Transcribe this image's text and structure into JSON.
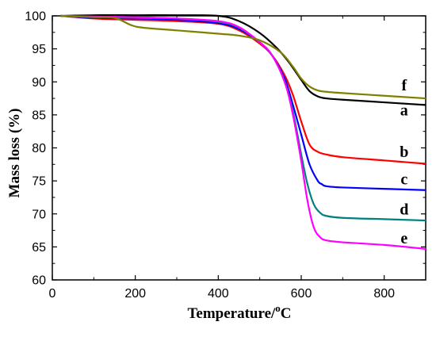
{
  "chart_data": {
    "type": "line",
    "xlabel": "Temperature/",
    "xlabel_unit_sup": "o",
    "xlabel_unit": "C",
    "ylabel": "Mass loss (%)",
    "xlim": [
      0,
      900
    ],
    "ylim": [
      60,
      100
    ],
    "x_ticks": [
      0,
      200,
      400,
      600,
      800
    ],
    "y_ticks": [
      60,
      65,
      70,
      75,
      80,
      85,
      90,
      95,
      100
    ],
    "grid": false,
    "series": [
      {
        "name": "a",
        "color": "#000000",
        "x": [
          20,
          100,
          200,
          300,
          400,
          450,
          500,
          540,
          570,
          600,
          620,
          640,
          660,
          700,
          800,
          900
        ],
        "y": [
          100,
          100.1,
          100.1,
          100.1,
          100,
          99.2,
          97.4,
          95.2,
          93,
          90.3,
          88.6,
          87.8,
          87.5,
          87.3,
          86.9,
          86.5
        ]
      },
      {
        "name": "b",
        "color": "#ff0000",
        "x": [
          20,
          100,
          200,
          300,
          400,
          450,
          500,
          530,
          560,
          580,
          600,
          620,
          640,
          660,
          700,
          800,
          900
        ],
        "y": [
          100,
          99.6,
          99.4,
          99.2,
          98.8,
          97.8,
          95.8,
          94,
          91,
          88,
          84,
          80.5,
          79.4,
          79,
          78.6,
          78.1,
          77.6
        ]
      },
      {
        "name": "c",
        "color": "#0000ff",
        "x": [
          20,
          100,
          200,
          300,
          400,
          450,
          500,
          530,
          560,
          580,
          600,
          620,
          640,
          650,
          660,
          700,
          800,
          900
        ],
        "y": [
          100,
          99.7,
          99.6,
          99.4,
          98.9,
          98,
          96,
          94,
          90.5,
          86.5,
          82,
          77.5,
          75,
          74.5,
          74.2,
          74,
          73.8,
          73.6
        ]
      },
      {
        "name": "d",
        "color": "#008080",
        "x": [
          20,
          100,
          200,
          300,
          400,
          450,
          500,
          530,
          560,
          580,
          600,
          615,
          630,
          645,
          660,
          700,
          800,
          900
        ],
        "y": [
          100,
          99.8,
          99.7,
          99.6,
          99.1,
          98.2,
          96,
          94,
          90,
          85.5,
          79,
          74.5,
          71.5,
          70.2,
          69.7,
          69.4,
          69.2,
          69
        ]
      },
      {
        "name": "e",
        "color": "#ff00ff",
        "x": [
          20,
          100,
          200,
          300,
          400,
          450,
          500,
          530,
          560,
          580,
          600,
          615,
          630,
          645,
          660,
          700,
          800,
          900
        ],
        "y": [
          100,
          99.9,
          99.8,
          99.6,
          99.2,
          98.3,
          96,
          94,
          90,
          85,
          78,
          72,
          68,
          66.5,
          66,
          65.7,
          65.3,
          64.7
        ]
      },
      {
        "name": "f",
        "color": "#808000",
        "x": [
          20,
          100,
          150,
          190,
          220,
          300,
          400,
          450,
          500,
          550,
          580,
          600,
          620,
          640,
          660,
          700,
          800,
          900
        ],
        "y": [
          100,
          99.8,
          99.7,
          98.6,
          98.2,
          97.8,
          97.3,
          97,
          96.3,
          94.5,
          92.3,
          90.5,
          89.3,
          88.7,
          88.5,
          88.3,
          87.9,
          87.5
        ]
      }
    ],
    "annotations": [
      {
        "text": "f",
        "x": 848,
        "y": 88.7
      },
      {
        "text": "a",
        "x": 848,
        "y": 84.9
      },
      {
        "text": "b",
        "x": 848,
        "y": 78.6
      },
      {
        "text": "c",
        "x": 848,
        "y": 74.5
      },
      {
        "text": "d",
        "x": 848,
        "y": 69.9
      },
      {
        "text": "e",
        "x": 848,
        "y": 65.5
      }
    ]
  }
}
